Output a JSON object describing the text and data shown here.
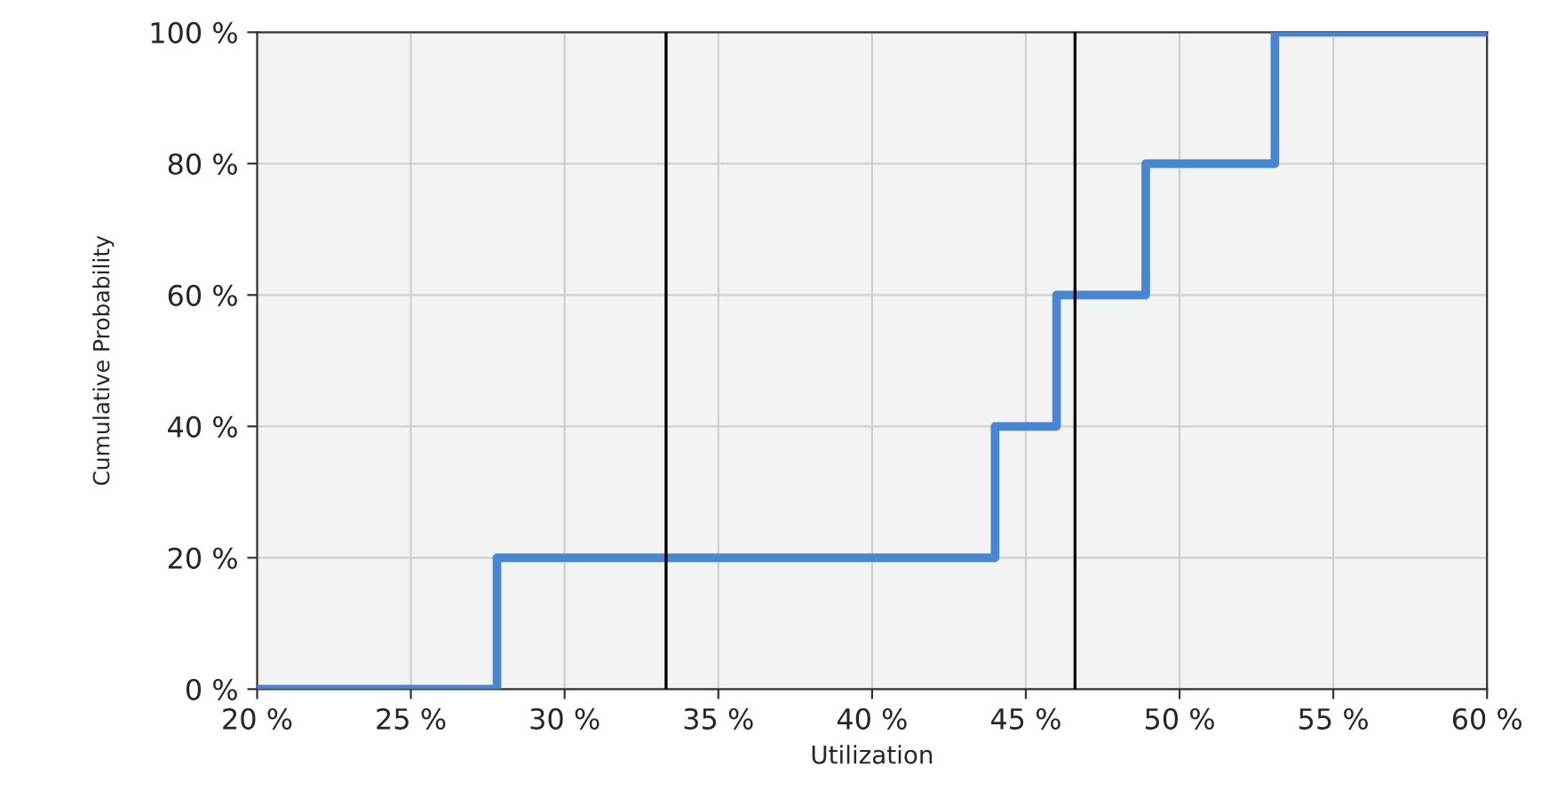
{
  "chart_data": {
    "type": "step",
    "xlabel": "Utilization",
    "ylabel": "Cumulative Probability",
    "x": [
      20,
      27.8,
      44,
      46,
      48.9,
      53.1,
      60
    ],
    "series": [
      {
        "color": "#4a86d0",
        "values": [
          0,
          20,
          40,
          60,
          80,
          100,
          100
        ]
      }
    ],
    "xlim": [
      20,
      60
    ],
    "ylim": [
      0,
      100
    ],
    "xticks": [
      {
        "value": 20,
        "label": "20 %"
      },
      {
        "value": 25,
        "label": "25 %"
      },
      {
        "value": 30,
        "label": "30 %"
      },
      {
        "value": 35,
        "label": "35 %"
      },
      {
        "value": 40,
        "label": "40 %"
      },
      {
        "value": 45,
        "label": "45 %"
      },
      {
        "value": 50,
        "label": "50 %"
      },
      {
        "value": 55,
        "label": "55 %"
      },
      {
        "value": 60,
        "label": "60 %"
      }
    ],
    "yticks": [
      {
        "value": 0,
        "label": "0 %"
      },
      {
        "value": 20,
        "label": "20 %"
      },
      {
        "value": 40,
        "label": "40 %"
      },
      {
        "value": 60,
        "label": "60 %"
      },
      {
        "value": 80,
        "label": "80 %"
      },
      {
        "value": 100,
        "label": "100 %"
      }
    ],
    "ref_lines": [
      {
        "axis": "x",
        "value": 33.3,
        "color": "#000000"
      },
      {
        "axis": "x",
        "value": 46.6,
        "color": "#000000"
      }
    ],
    "grid": true
  }
}
